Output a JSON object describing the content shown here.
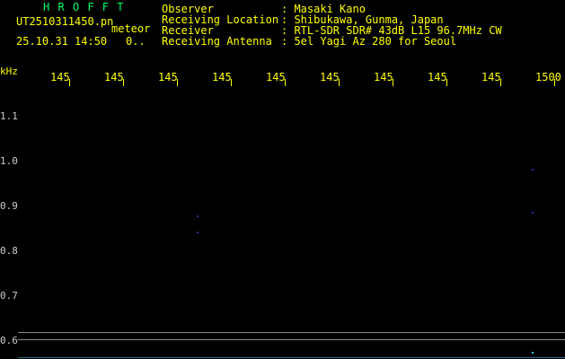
{
  "header": {
    "app_name": "H R O F F T",
    "file_name": "UT2510311450.pn",
    "mode": "meteor",
    "datetime": "25.10.31 14:50",
    "count": "0..",
    "fields": [
      {
        "label": "Observer",
        "value": ": Masaki Kano"
      },
      {
        "label": "Receiving Location",
        "value": ": Shibukawa, Gunma, Japan"
      },
      {
        "label": "Receiver",
        "value": ": RTL-SDR SDR# 43dB L15 96.7MHz CW"
      },
      {
        "label": "Receiving Antenna",
        "value": ": 5el Yagi Az 280 for Seoul"
      }
    ]
  },
  "time_axis": {
    "labels": [
      "145",
      "145",
      "145",
      "145",
      "145",
      "145",
      "145",
      "145",
      "145",
      "1500"
    ]
  },
  "freq_axis": {
    "unit": "kHz",
    "labels": [
      "1.1",
      "1.0",
      "0.9",
      "0.8",
      "0.7",
      "0.6"
    ]
  }
}
